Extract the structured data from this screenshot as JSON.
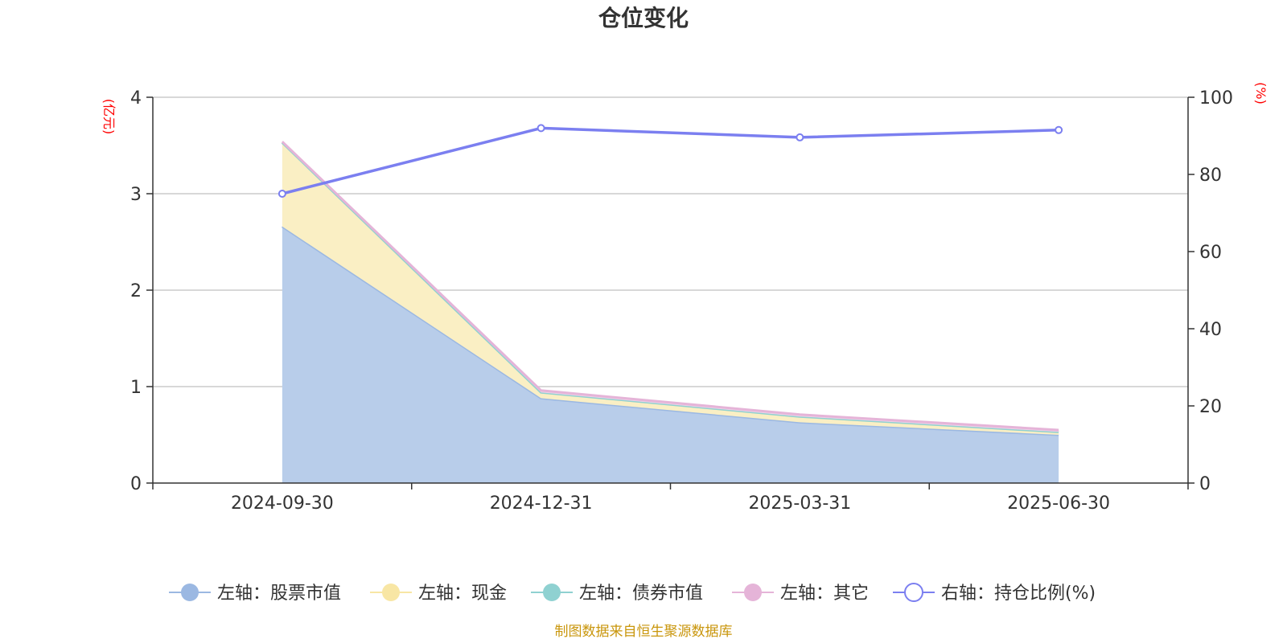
{
  "chart_data": {
    "type": "area",
    "title": "仓位变化",
    "categories": [
      "2024-09-30",
      "2024-12-31",
      "2025-03-31",
      "2025-06-30"
    ],
    "left_axis": {
      "unit_label": "(亿元)",
      "range": [
        0,
        4
      ],
      "ticks": [
        "0",
        "1",
        "2",
        "3",
        "4"
      ]
    },
    "right_axis": {
      "unit_label": "(%)",
      "range": [
        0,
        100
      ],
      "ticks": [
        "0",
        "20",
        "40",
        "60",
        "80",
        "100"
      ]
    },
    "grid": true,
    "legend_position": "bottom",
    "series": [
      {
        "name": "左轴：股票市值",
        "axis": "left",
        "stacked": true,
        "color": "#9bb8e2",
        "values": [
          2.66,
          0.88,
          0.63,
          0.5
        ]
      },
      {
        "name": "左轴：现金",
        "axis": "left",
        "stacked": true,
        "color": "#f8e6a4",
        "values": [
          0.87,
          0.06,
          0.06,
          0.03
        ]
      },
      {
        "name": "左轴：债券市值",
        "axis": "left",
        "stacked": true,
        "color": "#8fd1d1",
        "values": [
          0,
          0,
          0,
          0
        ]
      },
      {
        "name": "左轴：其它",
        "axis": "left",
        "stacked": true,
        "color": "#e5b4d8",
        "values": [
          0.01,
          0.02,
          0.02,
          0.02
        ]
      },
      {
        "name": "右轴：持仓比例(%)",
        "axis": "right",
        "type": "line",
        "color": "#7b7ff0",
        "values": [
          75.0,
          92.0,
          89.6,
          91.5
        ]
      }
    ]
  },
  "footer": "制图数据来自恒生聚源数据库"
}
